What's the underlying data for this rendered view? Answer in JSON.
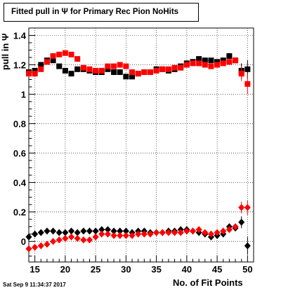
{
  "title": "Fitted pull in Ψ  for Primary Rec Pion NoHits",
  "datestamp": "Sat Sep  9 11:34:37 2017",
  "chart_data": {
    "type": "scatter",
    "title": "Fitted pull in Ψ  for Primary Rec Pion NoHits",
    "xlabel": "No. of Fit Points",
    "ylabel": "pull in Ψ",
    "xlim": [
      14,
      51
    ],
    "ylim": [
      -0.14,
      1.45
    ],
    "x_ticks": [
      15,
      20,
      25,
      30,
      35,
      40,
      45,
      50
    ],
    "x_tick_labels": [
      "15",
      "20",
      "25",
      "30",
      "35",
      "40",
      "45",
      "50"
    ],
    "y_ticks": [
      0,
      0.2,
      0.4,
      0.6,
      0.8,
      1,
      1.2,
      1.4
    ],
    "y_tick_labels": [
      "0",
      "0.2",
      "0.4",
      "0.6",
      "0.8",
      "1",
      "1.2",
      "1.4"
    ],
    "grid": true,
    "colors": {
      "series_a": "#000000",
      "series_b": "#ff0000"
    },
    "series": [
      {
        "marker": "square",
        "color": "#000000",
        "x": [
          14,
          15,
          16,
          17,
          18,
          19,
          20,
          21,
          22,
          23,
          24,
          25,
          26,
          27,
          28,
          29,
          30,
          31,
          32,
          33,
          34,
          35,
          36,
          37,
          38,
          39,
          40,
          41,
          42,
          43,
          44,
          45,
          46,
          47,
          48,
          49,
          50
        ],
        "y": [
          1.15,
          1.16,
          1.2,
          1.23,
          1.23,
          1.19,
          1.16,
          1.14,
          1.17,
          1.17,
          1.16,
          1.15,
          1.15,
          1.17,
          1.15,
          1.15,
          1.12,
          1.12,
          1.14,
          1.15,
          1.15,
          1.17,
          1.17,
          1.16,
          1.17,
          1.19,
          1.21,
          1.22,
          1.24,
          1.23,
          1.23,
          1.22,
          1.23,
          1.26,
          1.23,
          1.16,
          1.17
        ],
        "y_err": [
          0.02,
          0.01,
          0.01,
          0.01,
          0.01,
          0.01,
          0.01,
          0.01,
          0.01,
          0.01,
          0.01,
          0.01,
          0.01,
          0.01,
          0.01,
          0.01,
          0.01,
          0.01,
          0.01,
          0.01,
          0.01,
          0.01,
          0.01,
          0.01,
          0.01,
          0.01,
          0.01,
          0.01,
          0.01,
          0.01,
          0.01,
          0.01,
          0.01,
          0.02,
          0.02,
          0.05,
          0.06
        ]
      },
      {
        "marker": "square",
        "color": "#ff0000",
        "x": [
          14,
          15,
          16,
          17,
          18,
          19,
          20,
          21,
          22,
          23,
          24,
          25,
          26,
          27,
          28,
          29,
          30,
          31,
          32,
          33,
          34,
          35,
          36,
          37,
          38,
          39,
          40,
          41,
          42,
          43,
          44,
          45,
          46,
          47,
          48,
          49,
          50
        ],
        "y": [
          1.14,
          1.14,
          1.17,
          1.22,
          1.26,
          1.27,
          1.28,
          1.27,
          1.24,
          1.18,
          1.17,
          1.16,
          1.16,
          1.19,
          1.19,
          1.2,
          1.19,
          1.15,
          1.14,
          1.15,
          1.15,
          1.16,
          1.17,
          1.17,
          1.18,
          1.18,
          1.2,
          1.21,
          1.21,
          1.2,
          1.19,
          1.2,
          1.21,
          1.22,
          1.23,
          1.14,
          1.07
        ],
        "y_err": [
          0.02,
          0.01,
          0.01,
          0.01,
          0.01,
          0.01,
          0.01,
          0.01,
          0.01,
          0.01,
          0.01,
          0.01,
          0.01,
          0.01,
          0.01,
          0.01,
          0.01,
          0.01,
          0.01,
          0.01,
          0.01,
          0.01,
          0.01,
          0.01,
          0.01,
          0.01,
          0.01,
          0.01,
          0.01,
          0.01,
          0.01,
          0.01,
          0.01,
          0.02,
          0.02,
          0.05,
          0.07
        ]
      },
      {
        "marker": "diamond",
        "color": "#000000",
        "x": [
          14,
          15,
          16,
          17,
          18,
          19,
          20,
          21,
          22,
          23,
          24,
          25,
          26,
          27,
          28,
          29,
          30,
          31,
          32,
          33,
          34,
          35,
          36,
          37,
          38,
          39,
          40,
          41,
          42,
          43,
          44,
          45,
          46,
          47,
          48,
          49,
          50
        ],
        "y": [
          0.03,
          0.05,
          0.06,
          0.07,
          0.07,
          0.06,
          0.06,
          0.07,
          0.06,
          0.07,
          0.07,
          0.07,
          0.08,
          0.08,
          0.07,
          0.07,
          0.07,
          0.06,
          0.07,
          0.07,
          0.06,
          0.06,
          0.06,
          0.07,
          0.07,
          0.08,
          0.08,
          0.07,
          0.06,
          0.05,
          0.03,
          0.04,
          0.05,
          0.1,
          0.09,
          0.13,
          -0.03
        ],
        "y_err": [
          0.01,
          0.01,
          0.01,
          0.01,
          0.01,
          0.01,
          0.01,
          0.01,
          0.01,
          0.01,
          0.01,
          0.01,
          0.01,
          0.01,
          0.01,
          0.01,
          0.01,
          0.01,
          0.01,
          0.01,
          0.01,
          0.01,
          0.01,
          0.01,
          0.01,
          0.01,
          0.01,
          0.01,
          0.01,
          0.01,
          0.02,
          0.02,
          0.02,
          0.02,
          0.02,
          0.04,
          0.06
        ]
      },
      {
        "marker": "diamond",
        "color": "#ff0000",
        "x": [
          14,
          15,
          16,
          17,
          18,
          19,
          20,
          21,
          22,
          23,
          24,
          25,
          26,
          27,
          28,
          29,
          30,
          31,
          32,
          33,
          34,
          35,
          36,
          37,
          38,
          39,
          40,
          41,
          42,
          43,
          44,
          45,
          46,
          47,
          48,
          49,
          50
        ],
        "y": [
          -0.05,
          -0.04,
          -0.03,
          -0.02,
          0.0,
          0.01,
          0.02,
          0.03,
          0.02,
          0.01,
          0.01,
          0.03,
          0.05,
          0.05,
          0.04,
          0.04,
          0.04,
          0.04,
          0.05,
          0.05,
          0.05,
          0.06,
          0.06,
          0.06,
          0.06,
          0.06,
          0.07,
          0.07,
          0.08,
          0.06,
          0.05,
          0.06,
          0.07,
          0.08,
          0.1,
          0.23,
          0.23
        ],
        "y_err": [
          0.01,
          0.01,
          0.01,
          0.01,
          0.01,
          0.01,
          0.01,
          0.01,
          0.01,
          0.01,
          0.01,
          0.01,
          0.01,
          0.01,
          0.01,
          0.01,
          0.01,
          0.01,
          0.01,
          0.01,
          0.01,
          0.01,
          0.01,
          0.01,
          0.01,
          0.01,
          0.01,
          0.01,
          0.01,
          0.01,
          0.02,
          0.02,
          0.02,
          0.02,
          0.02,
          0.04,
          0.05
        ]
      }
    ]
  }
}
